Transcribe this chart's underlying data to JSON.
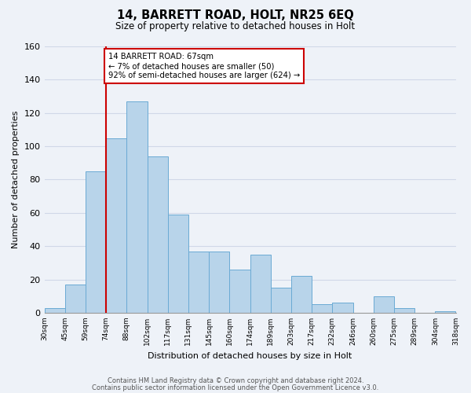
{
  "title": "14, BARRETT ROAD, HOLT, NR25 6EQ",
  "subtitle": "Size of property relative to detached houses in Holt",
  "xlabel": "Distribution of detached houses by size in Holt",
  "ylabel": "Number of detached properties",
  "bin_labels": [
    "30sqm",
    "45sqm",
    "59sqm",
    "74sqm",
    "88sqm",
    "102sqm",
    "117sqm",
    "131sqm",
    "145sqm",
    "160sqm",
    "174sqm",
    "189sqm",
    "203sqm",
    "217sqm",
    "232sqm",
    "246sqm",
    "260sqm",
    "275sqm",
    "289sqm",
    "304sqm",
    "318sqm"
  ],
  "bar_heights": [
    3,
    17,
    85,
    105,
    127,
    94,
    59,
    37,
    37,
    26,
    35,
    15,
    22,
    5,
    6,
    0,
    10,
    3,
    0,
    1
  ],
  "bar_color": "#b8d4ea",
  "bar_edge_color": "#6aaad4",
  "vline_x_index": 3,
  "vline_color": "#cc0000",
  "annotation_text": "14 BARRETT ROAD: 67sqm\n← 7% of detached houses are smaller (50)\n92% of semi-detached houses are larger (624) →",
  "annotation_box_color": "#ffffff",
  "annotation_box_edge_color": "#cc0000",
  "ylim": [
    0,
    160
  ],
  "yticks": [
    0,
    20,
    40,
    60,
    80,
    100,
    120,
    140,
    160
  ],
  "footer_line1": "Contains HM Land Registry data © Crown copyright and database right 2024.",
  "footer_line2": "Contains public sector information licensed under the Open Government Licence v3.0.",
  "bg_color": "#eef2f8",
  "plot_bg_color": "#eef2f8",
  "grid_color": "#d0d8e8"
}
